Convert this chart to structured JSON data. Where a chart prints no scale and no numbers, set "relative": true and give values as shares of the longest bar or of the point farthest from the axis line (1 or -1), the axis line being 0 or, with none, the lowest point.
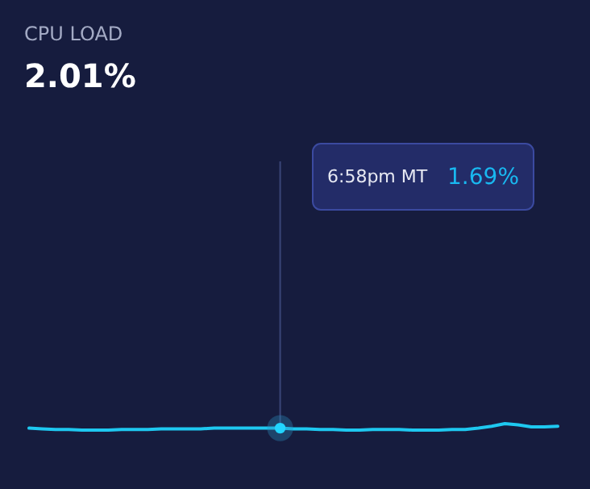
{
  "chart_data": {
    "type": "line",
    "title": "CPU LOAD",
    "subtitle": "2.01%",
    "relative": true,
    "categories": [
      null,
      null,
      null,
      null,
      null,
      null,
      null,
      null,
      null,
      null,
      null,
      null,
      null,
      null,
      null,
      null,
      null,
      null,
      null,
      null,
      null,
      null,
      null,
      null,
      null,
      null,
      null,
      null,
      null,
      null,
      null,
      null,
      null,
      null,
      null,
      null,
      null,
      null,
      null,
      null,
      null
    ],
    "series": [
      {
        "color": "#1ec8f0",
        "values": [
          0.3,
          0.2,
          0.1,
          0.1,
          0.0,
          0.0,
          0.0,
          0.1,
          0.1,
          0.1,
          0.2,
          0.2,
          0.2,
          0.2,
          0.3,
          0.3,
          0.3,
          0.3,
          0.3,
          0.3,
          0.2,
          0.2,
          0.1,
          0.1,
          0.0,
          0.0,
          0.1,
          0.1,
          0.1,
          0.0,
          0.0,
          0.0,
          0.1,
          0.1,
          0.3,
          0.6,
          1.0,
          0.8,
          0.5,
          0.5,
          0.6
        ]
      }
    ],
    "annotations": [
      "6:58pm MT",
      "1.69%"
    ],
    "line_style": "solid"
  }
}
